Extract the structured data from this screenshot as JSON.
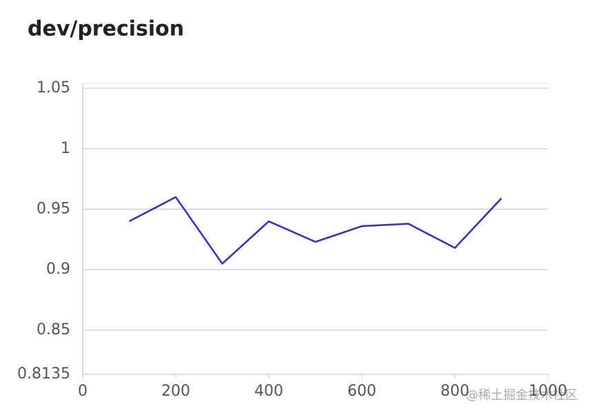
{
  "chart_data": {
    "type": "line",
    "title": "dev/precision",
    "x": [
      100,
      200,
      300,
      400,
      500,
      600,
      700,
      800,
      900
    ],
    "series": [
      {
        "name": "dev/precision",
        "color": "#3434c0",
        "values": [
          0.94,
          0.96,
          0.905,
          0.94,
          0.923,
          0.936,
          0.938,
          0.918,
          0.959
        ]
      }
    ],
    "xlim": [
      0,
      1000
    ],
    "xticks": [
      0,
      200,
      400,
      600,
      800,
      1000
    ],
    "ylim": [
      0.8135,
      1.054
    ],
    "yticks": [
      0.8135,
      0.85,
      0.9,
      0.95,
      1,
      1.05
    ],
    "grid": true,
    "watermark": "@稀土掘金技术社区"
  }
}
